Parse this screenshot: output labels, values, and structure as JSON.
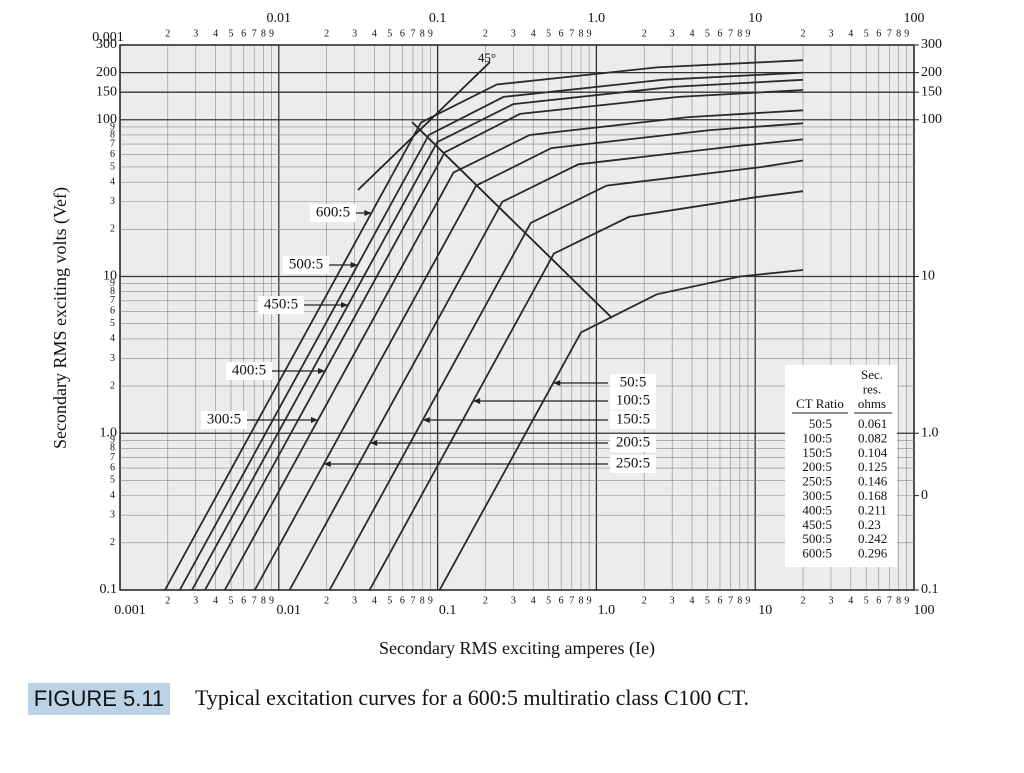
{
  "chart_data": {
    "type": "line",
    "x_label": "Secondary RMS exciting amperes (Ie)",
    "y_label": "Secondary RMS exciting volts (Vef)",
    "log_x": true,
    "log_y": true,
    "grid": true,
    "xlim": [
      0.001,
      100
    ],
    "ylim": [
      0.1,
      300
    ],
    "y2lim": [
      0.1,
      300
    ],
    "xticks": [
      0.001,
      0.01,
      0.1,
      {
        "value": 1,
        "label": "1.0"
      },
      10,
      100
    ],
    "yticks": [
      0.1,
      {
        "value": 1,
        "label": "1.0"
      },
      10,
      100,
      150,
      200,
      300
    ],
    "y2ticks": [
      300,
      200,
      150,
      100,
      10,
      {
        "value": 1,
        "label": "1.0"
      },
      {
        "value": 0.4,
        "label": "0"
      },
      0.1
    ],
    "minor_ticks": [
      2,
      3,
      4,
      5,
      6,
      7,
      8,
      9
    ],
    "annotation": "45°",
    "series": [
      {
        "name": "600:5",
        "color": "#2a2a2a",
        "x": [
          0.00192,
          0.0785,
          0.236,
          2.4,
          20
        ],
        "values": [
          0.1,
          96,
          168,
          216,
          240
        ]
      },
      {
        "name": "500:5",
        "color": "#2a2a2a",
        "x": [
          0.00238,
          0.088,
          0.26,
          2.6,
          20
        ],
        "values": [
          0.1,
          80,
          140,
          180,
          200
        ]
      },
      {
        "name": "450:5",
        "color": "#2a2a2a",
        "x": [
          0.00284,
          0.0995,
          0.3,
          3,
          20
        ],
        "values": [
          0.1,
          72,
          126,
          162,
          180
        ]
      },
      {
        "name": "400:5",
        "color": "#2a2a2a",
        "x": [
          0.00343,
          0.111,
          0.33,
          3.3,
          20
        ],
        "values": [
          0.1,
          62,
          109,
          140,
          155
        ]
      },
      {
        "name": "300:5",
        "color": "#2a2a2a",
        "x": [
          0.00457,
          0.126,
          0.38,
          3.8,
          20
        ],
        "values": [
          0.1,
          46,
          80,
          104,
          115
        ]
      },
      {
        "name": "250:5",
        "color": "#2a2a2a",
        "x": [
          0.00706,
          0.175,
          0.52,
          5.2,
          20
        ],
        "values": [
          0.1,
          38,
          66,
          86,
          95
        ]
      },
      {
        "name": "200:5",
        "color": "#2a2a2a",
        "x": [
          0.0117,
          0.256,
          0.77,
          7.7,
          20
        ],
        "values": [
          0.1,
          30,
          52,
          68,
          75
        ]
      },
      {
        "name": "150:5",
        "color": "#2a2a2a",
        "x": [
          0.0209,
          0.386,
          1.16,
          11,
          20
        ],
        "values": [
          0.1,
          22,
          38,
          50,
          55
        ]
      },
      {
        "name": "100:5",
        "color": "#2a2a2a",
        "x": [
          0.0373,
          0.54,
          1.6,
          10,
          20
        ],
        "values": [
          0.1,
          14,
          24,
          32,
          35
        ]
      },
      {
        "name": "50:5",
        "color": "#2a2a2a",
        "x": [
          0.103,
          0.8,
          2.4,
          8,
          20
        ],
        "values": [
          0.1,
          4.4,
          7.7,
          10,
          11
        ]
      }
    ],
    "table": {
      "ratio_header": "CT Ratio",
      "res_header": [
        "Sec.",
        "res.",
        "ohms"
      ],
      "rows": [
        [
          "50:5",
          0.061
        ],
        [
          "100:5",
          0.082
        ],
        [
          "150:5",
          0.104
        ],
        [
          "200:5",
          0.125
        ],
        [
          "250:5",
          0.146
        ],
        [
          "300:5",
          0.168
        ],
        [
          "400:5",
          0.211
        ],
        [
          "450:5",
          0.23
        ],
        [
          "500:5",
          0.242
        ],
        [
          "600:5",
          0.296
        ]
      ]
    }
  },
  "caption": {
    "label": "FIGURE 5.11",
    "text": "Typical excitation curves for a 600:5 multiratio class C100 CT."
  }
}
